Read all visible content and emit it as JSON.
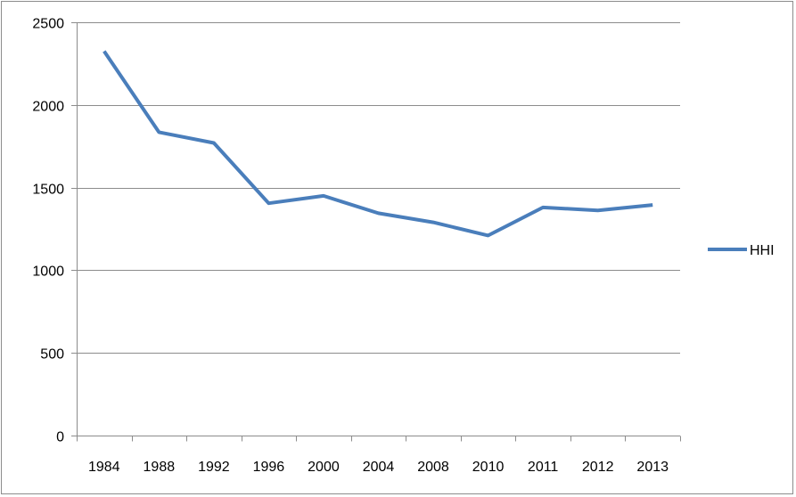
{
  "chart_data": {
    "type": "line",
    "title": "",
    "xlabel": "",
    "ylabel": "",
    "categories": [
      "1984",
      "1988",
      "1992",
      "1996",
      "2000",
      "2004",
      "2008",
      "2010",
      "2011",
      "2012",
      "2013"
    ],
    "series": [
      {
        "name": "HHI",
        "color": "#4a7ebb",
        "values": [
          2325,
          1835,
          1770,
          1405,
          1450,
          1345,
          1290,
          1210,
          1380,
          1362,
          1395
        ]
      }
    ],
    "ylim": [
      0,
      2500
    ],
    "yticks": [
      0,
      500,
      1000,
      1500,
      2000,
      2500
    ],
    "grid": true,
    "legend_position": "right"
  }
}
